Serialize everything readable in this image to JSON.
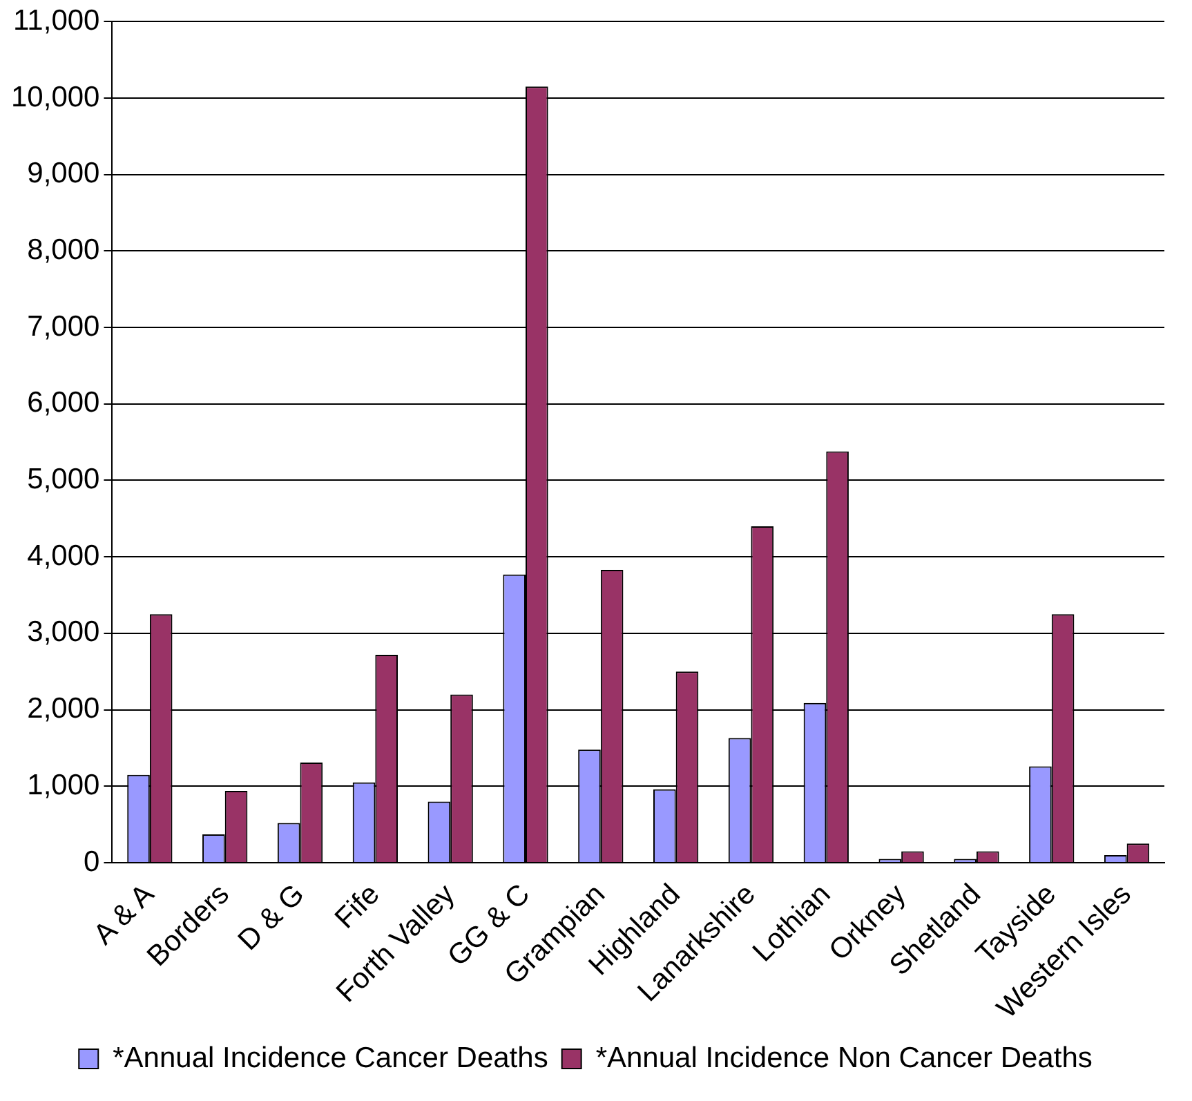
{
  "chart_data": {
    "type": "bar",
    "categories": [
      "A & A",
      "Borders",
      "D & G",
      "Fife",
      "Forth Valley",
      "GG & C",
      "Grampian",
      "Highland",
      "Lanarkshire",
      "Lothian",
      "Orkney",
      "Shetland",
      "Tayside",
      "Western Isles"
    ],
    "series": [
      {
        "name": "*Annual Incidence Cancer Deaths",
        "color": "#9999ff",
        "values": [
          1150,
          370,
          520,
          1050,
          800,
          3770,
          1480,
          960,
          1630,
          2090,
          50,
          50,
          1260,
          100
        ]
      },
      {
        "name": "*Annual Incidence Non Cancer Deaths",
        "color": "#993366",
        "values": [
          3250,
          940,
          1310,
          2720,
          2200,
          10150,
          3830,
          2500,
          4400,
          5380,
          150,
          150,
          3250,
          250
        ]
      }
    ],
    "ylim": [
      0,
      11000
    ],
    "yticks": [
      {
        "value": 0,
        "label": "0"
      },
      {
        "value": 1000,
        "label": "1,000"
      },
      {
        "value": 2000,
        "label": "2,000"
      },
      {
        "value": 3000,
        "label": "3,000"
      },
      {
        "value": 4000,
        "label": "4,000"
      },
      {
        "value": 5000,
        "label": "5,000"
      },
      {
        "value": 6000,
        "label": "6,000"
      },
      {
        "value": 7000,
        "label": "7,000"
      },
      {
        "value": 8000,
        "label": "8,000"
      },
      {
        "value": 9000,
        "label": "9,000"
      },
      {
        "value": 10000,
        "label": "10,000"
      },
      {
        "value": 11000,
        "label": "11,000"
      }
    ],
    "grid": "y",
    "legend": "bottom"
  }
}
